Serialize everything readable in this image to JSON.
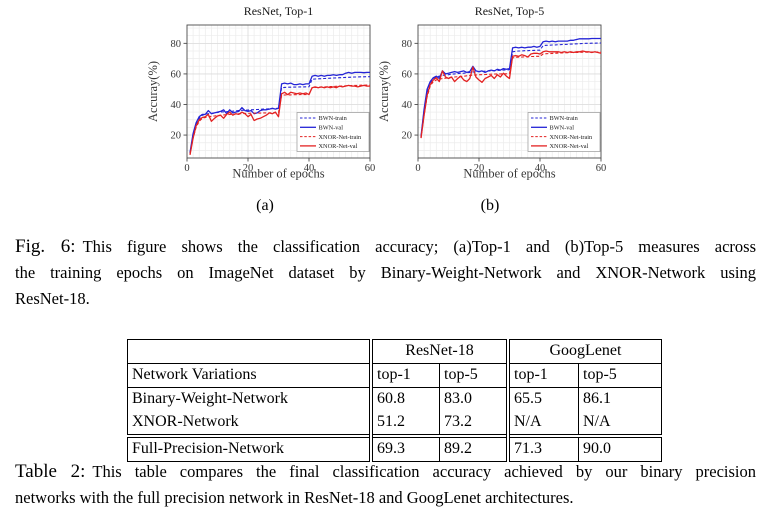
{
  "figure": {
    "subcaptions": {
      "a": "(a)",
      "b": "(b)"
    },
    "caption": {
      "label": "Fig. 6:",
      "lines": [
        "This figure shows the classification accuracy; (a)Top-1 and (b)Top-5 measures across",
        "the training epochs on ImageNet dataset by Binary-Weight-Network and XNOR-Network using",
        "ResNet-18."
      ]
    }
  },
  "chart_data": [
    {
      "type": "line",
      "title": "ResNet, Top-1",
      "xlabel": "Number of epochs",
      "ylabel": "Accuray(%)",
      "x_note": "epochs 1 to 60, one value per epoch",
      "xlim": [
        0,
        60
      ],
      "ylim": [
        5,
        92
      ],
      "xticks": [
        0,
        20,
        40,
        60
      ],
      "yticks": [
        20,
        40,
        60,
        80
      ],
      "grid": "minor",
      "legend_position": "lower right",
      "series": [
        {
          "name": "BWN-train",
          "color": "#2424d6",
          "dash": true,
          "values": [
            8,
            20,
            27,
            31,
            33,
            33.5,
            34,
            34.2,
            34.5,
            34.8,
            35,
            35.2,
            35.3,
            35.5,
            35.6,
            35.8,
            36,
            36.2,
            36.3,
            36.4,
            36.5,
            36.6,
            36.7,
            36.8,
            37,
            37,
            37.2,
            37.3,
            37.4,
            37.5,
            51,
            51.2,
            51.3,
            51.3,
            51.4,
            51.4,
            51.5,
            51.5,
            51.6,
            51.6,
            56.5,
            56.7,
            56.8,
            56.9,
            57,
            57.1,
            57.2,
            57.3,
            57.4,
            57.5,
            57.6,
            57.7,
            57.8,
            57.9,
            58,
            58,
            58.1,
            58.1,
            58.2,
            58.2
          ]
        },
        {
          "name": "BWN-val",
          "color": "#2424d6",
          "dash": false,
          "values": [
            8.5,
            21,
            28,
            32,
            33.5,
            33.5,
            36,
            34,
            34.5,
            35,
            35.5,
            36.5,
            34,
            36.5,
            34.5,
            35,
            35.5,
            38,
            36,
            35.5,
            36,
            34,
            34.5,
            36,
            36.5,
            36.5,
            37,
            37.5,
            37,
            37.5,
            53.5,
            54,
            53.5,
            54,
            53,
            53,
            53.5,
            53,
            53.5,
            53.5,
            58.5,
            59,
            58.5,
            59,
            58.5,
            59,
            59,
            59.5,
            59,
            59.5,
            59.5,
            60.5,
            61,
            60.5,
            61,
            61,
            61,
            60.8,
            61,
            61
          ]
        },
        {
          "name": "XNOR-Net-train",
          "color": "#e32222",
          "dash": true,
          "values": [
            7.5,
            18,
            25,
            29,
            31,
            31.5,
            32,
            32.3,
            32.5,
            32.8,
            33,
            33.2,
            33.3,
            33.5,
            33.6,
            33.8,
            34,
            34,
            34.2,
            34.2,
            34.3,
            34.3,
            34.4,
            34.4,
            34.5,
            34.5,
            34.5,
            34.6,
            34.6,
            34.6,
            46,
            46.2,
            46.3,
            46.3,
            46.4,
            46.4,
            46.5,
            46.5,
            46.5,
            46.6,
            51,
            51.2,
            51.3,
            51.4,
            51.5,
            51.6,
            51.7,
            51.8,
            51.9,
            52,
            52.1,
            52.2,
            52.3,
            52.4,
            52.5,
            52.5,
            52.6,
            52.6,
            52.7,
            52.7
          ]
        },
        {
          "name": "XNOR-Net-val",
          "color": "#e32222",
          "dash": false,
          "values": [
            7,
            18,
            26,
            30,
            31.5,
            32,
            33.5,
            29,
            31,
            32.5,
            33,
            31,
            33.5,
            35,
            33,
            34,
            33.5,
            35,
            34,
            32,
            33.5,
            29.5,
            30.5,
            31,
            32,
            33,
            34.5,
            34,
            35,
            32,
            47,
            48,
            46.5,
            48,
            47.5,
            47,
            47.5,
            47,
            47.5,
            46.5,
            51,
            51.5,
            51,
            51.5,
            51,
            51.5,
            51,
            51.5,
            51,
            52,
            51.5,
            52,
            52.5,
            52,
            52,
            51.5,
            52,
            52.5,
            52,
            52
          ]
        }
      ]
    },
    {
      "type": "line",
      "title": "ResNet, Top-5",
      "xlabel": "Number of epochs",
      "ylabel": "Accuray(%)",
      "x_note": "epochs 1 to 60, one value per epoch",
      "xlim": [
        0,
        60
      ],
      "ylim": [
        5,
        92
      ],
      "xticks": [
        0,
        20,
        40,
        60
      ],
      "yticks": [
        20,
        40,
        60,
        80
      ],
      "grid": "minor",
      "legend_position": "lower right",
      "series": [
        {
          "name": "BWN-train",
          "color": "#2424d6",
          "dash": true,
          "values": [
            19,
            36,
            48,
            54,
            57,
            58,
            58.5,
            59,
            59.2,
            59.5,
            59.8,
            60,
            60.2,
            60.4,
            60.5,
            60.8,
            61,
            61.2,
            61.3,
            61.5,
            61.6,
            61.8,
            62,
            62,
            62.2,
            62.3,
            62.4,
            62.5,
            62.6,
            62.7,
            74.5,
            74.8,
            75,
            75,
            75.2,
            75.2,
            75.4,
            75.4,
            75.5,
            75.5,
            78.5,
            78.7,
            78.8,
            78.9,
            79,
            79.1,
            79.2,
            79.3,
            79.4,
            79.5,
            79.6,
            79.7,
            79.8,
            79.9,
            80,
            80,
            80.1,
            80.1,
            80.2,
            80.2
          ]
        },
        {
          "name": "BWN-val",
          "color": "#2424d6",
          "dash": false,
          "values": [
            19,
            37,
            50,
            55,
            57.5,
            58.5,
            57,
            62,
            60,
            60.5,
            61,
            61.5,
            61,
            61.5,
            62,
            61,
            61.5,
            65,
            62,
            61.5,
            62,
            61,
            62,
            62.5,
            62,
            63,
            62.5,
            63.5,
            63,
            63.5,
            77,
            77.5,
            77,
            77.5,
            77,
            77.5,
            77.5,
            78,
            77.5,
            78,
            81,
            81.5,
            81,
            81.5,
            81,
            81.5,
            81.5,
            81.5,
            81.5,
            82,
            82,
            82.5,
            83,
            83,
            83,
            83,
            83.2,
            83.2,
            83.2,
            83.2
          ]
        },
        {
          "name": "XNOR-Net-train",
          "color": "#e32222",
          "dash": true,
          "values": [
            18,
            33,
            45,
            52,
            55,
            56,
            56.5,
            57,
            57.2,
            57.5,
            57.8,
            58,
            58.2,
            58.4,
            58.5,
            58.8,
            59,
            59.2,
            59.3,
            59.5,
            59.5,
            59.6,
            59.7,
            59.8,
            59.9,
            60,
            60,
            60.1,
            60.1,
            60.2,
            70.5,
            70.8,
            71,
            71,
            71.2,
            71.2,
            71.4,
            71.4,
            71.5,
            71.5,
            73,
            73.2,
            73.3,
            73.4,
            73.5,
            73.6,
            73.7,
            73.8,
            73.9,
            74,
            74,
            74.1,
            74.1,
            74.2,
            74.2,
            74.2,
            74.3,
            74.3,
            74.3,
            74.3
          ]
        },
        {
          "name": "XNOR-Net-val",
          "color": "#e32222",
          "dash": false,
          "values": [
            18,
            33,
            46,
            53,
            56,
            57.5,
            55,
            62,
            58,
            57,
            58,
            55,
            57,
            58.5,
            56,
            55,
            57,
            64.5,
            58,
            56,
            54.5,
            57,
            58,
            59,
            57,
            59.5,
            58,
            60.5,
            58.5,
            57,
            71.5,
            72,
            71.5,
            72.5,
            72,
            71,
            73,
            73.5,
            73.5,
            73,
            74.5,
            75,
            74.5,
            74.5,
            74.5,
            74.5,
            74,
            74.5,
            74,
            74.5,
            74,
            74.5,
            74.5,
            75,
            74.5,
            74.5,
            74,
            74.5,
            74,
            73.5
          ]
        }
      ]
    }
  ],
  "table": {
    "group_headers": [
      "ResNet-18",
      "GoogLenet"
    ],
    "row_header": "Network Variations",
    "col_headers": [
      "top-1",
      "top-5",
      "top-1",
      "top-5"
    ],
    "rows": [
      {
        "label": "Binary-Weight-Network",
        "values": [
          "60.8",
          "83.0",
          "65.5",
          "86.1"
        ]
      },
      {
        "label": "XNOR-Network",
        "values": [
          "51.2",
          "73.2",
          "N/A",
          "N/A"
        ]
      }
    ],
    "footer_row": {
      "label": "Full-Precision-Network",
      "values": [
        "69.3",
        "89.2",
        "71.3",
        "90.0"
      ]
    }
  },
  "table_caption": {
    "label": "Table 2:",
    "lines": [
      "This table compares the final classification accuracy achieved by our binary precision",
      "networks with the full precision network in ResNet-18 and GoogLenet architectures."
    ]
  },
  "colors": {
    "bwn_blue": "#2424d6",
    "xnor_red": "#e32222",
    "grid_minor": "#ececec",
    "grid_major": "#dcdcdc",
    "axis": "#4a4a4a"
  }
}
